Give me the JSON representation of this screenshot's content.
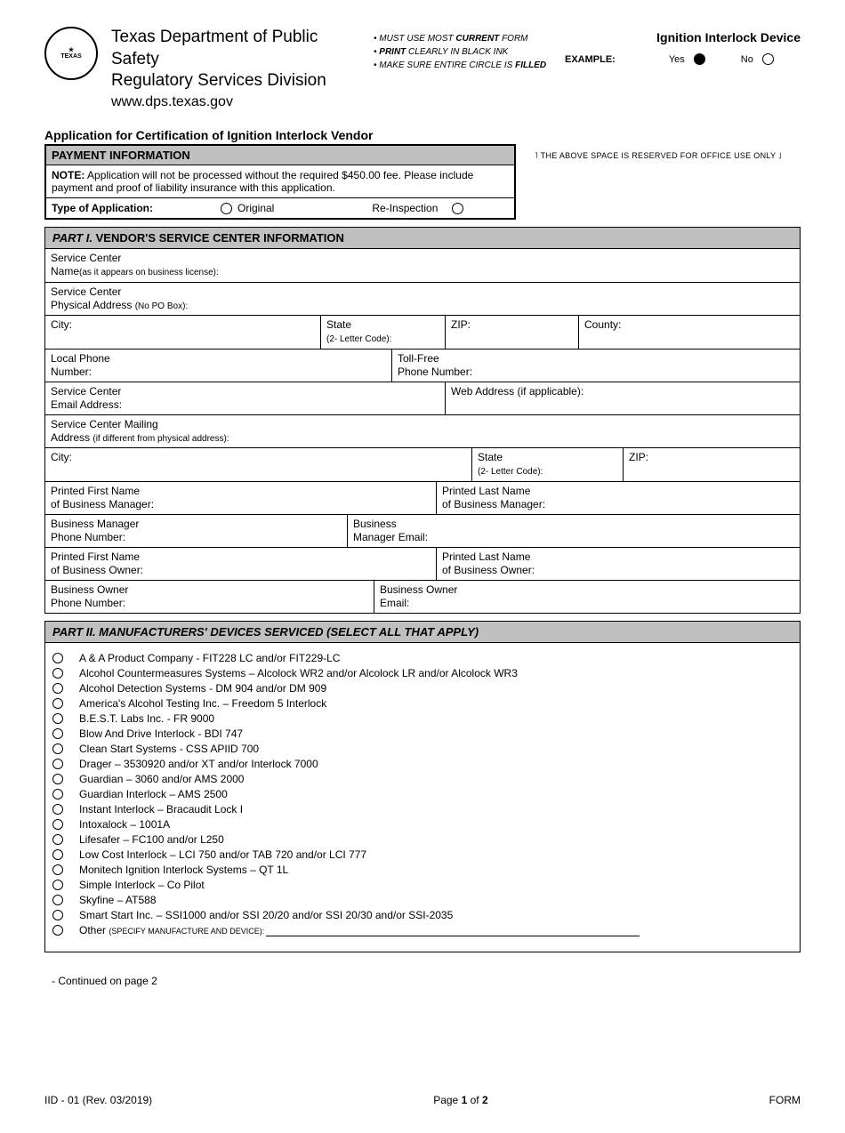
{
  "header": {
    "dept_line1": "Texas Department of Public Safety",
    "dept_line2": "Regulatory Services Division",
    "url": "www.dps.texas.gov",
    "instr1_a": "MUST USE MOST ",
    "instr1_b": "CURRENT",
    "instr1_c": " FORM",
    "instr2_a": "PRINT",
    "instr2_b": " CLEARLY IN BLACK INK",
    "instr3_a": "MAKE SURE ENTIRE CIRCLE IS ",
    "instr3_b": "FILLED",
    "right_title": "Ignition Interlock Device",
    "example_label": "EXAMPLE:",
    "yes": "Yes",
    "no": "No"
  },
  "app_title": "Application for Certification of Ignition Interlock Vendor",
  "payment": {
    "head": "PAYMENT INFORMATION",
    "note_bold": "NOTE:",
    "note_text": " Application will not be processed without the required $450.00 fee.  Please include payment and proof of liability insurance with this application.",
    "type_label": "Type of Application:",
    "original": "Original",
    "reinspection": "Re-Inspection",
    "office_only": "˥ THE ABOVE SPACE IS RESERVED FOR OFFICE USE ONLY ˩"
  },
  "part1": {
    "head_italic": "PART I.  ",
    "head_rest": "VENDOR'S SERVICE CENTER INFORMATION",
    "rows": {
      "svc_name_a": "Service Center",
      "svc_name_b": "Name",
      "svc_name_sub": "(as it appears on business license):",
      "svc_addr_a": "Service Center",
      "svc_addr_b": "Physical Address ",
      "svc_addr_sub": "(No PO Box):",
      "city": "City:",
      "state_a": "State",
      "state_b": "(2- Letter Code):",
      "zip": "ZIP:",
      "county": "County:",
      "local_phone_a": "Local Phone",
      "local_phone_b": "Number:",
      "tollfree_a": "Toll-Free",
      "tollfree_b": "Phone Number:",
      "svc_email_a": "Service Center",
      "svc_email_b": "Email Address:",
      "web": "Web Address (if applicable):",
      "mail_a": "Service Center Mailing",
      "mail_b": "Address ",
      "mail_sub": "(if different from physical address):",
      "city2": "City:",
      "state2_a": "State",
      "state2_b": "(2- Letter Code):",
      "zip2": "ZIP:",
      "bm_first_a": "Printed First Name",
      "bm_first_b": "of Business Manager:",
      "bm_last_a": "Printed Last Name",
      "bm_last_b": "of Business Manager:",
      "bm_phone_a": "Business Manager",
      "bm_phone_b": "Phone Number:",
      "bm_email_a": "Business",
      "bm_email_b": "Manager Email:",
      "bo_first_a": "Printed First Name",
      "bo_first_b": "of Business Owner:",
      "bo_last_a": "Printed Last Name",
      "bo_last_b": "of Business Owner:",
      "bo_phone_a": "Business Owner",
      "bo_phone_b": "Phone Number:",
      "bo_email_a": "Business Owner",
      "bo_email_b": "Email:"
    }
  },
  "part2": {
    "head_italic": "PART II.  MANUFACTURERS' DEVICES SERVICED ",
    "head_paren": "(SELECT ALL THAT APPLY)",
    "devices": [
      "A & A Product Company - FIT228 LC and/or FIT229-LC",
      "Alcohol Countermeasures Systems – Alcolock WR2 and/or Alcolock LR and/or Alcolock WR3",
      "Alcohol Detection Systems - DM 904 and/or DM 909",
      "America's Alcohol Testing Inc. – Freedom 5 Interlock",
      "B.E.S.T. Labs Inc. - FR 9000",
      "Blow And Drive Interlock - BDI 747",
      "Clean Start Systems - CSS APIID 700",
      "Drager – 3530920 and/or XT and/or Interlock 7000",
      "Guardian – 3060 and/or AMS 2000",
      "Guardian Interlock – AMS 2500",
      "Instant Interlock – Bracaudit Lock I",
      "Intoxalock – 1001A",
      "Lifesafer – FC100 and/or L250",
      "Low Cost Interlock – LCI 750 and/or TAB 720 and/or LCI 777",
      "Monitech Ignition Interlock Systems – QT 1L",
      "Simple Interlock – Co Pilot",
      "Skyfine – AT588",
      "Smart Start Inc. – SSI1000 and/or SSI 20/20 and/or SSI 20/30 and/or SSI-2035"
    ],
    "other_label": "Other ",
    "other_sub": "(SPECIFY MANUFACTURE AND DEVICE):"
  },
  "continued": "- Continued on page 2",
  "footer": {
    "left": "IID - 01 (Rev. 03/2019)",
    "page_a": "Page ",
    "page_b": "1",
    "page_c": " of ",
    "page_d": "2",
    "right": "FORM"
  }
}
